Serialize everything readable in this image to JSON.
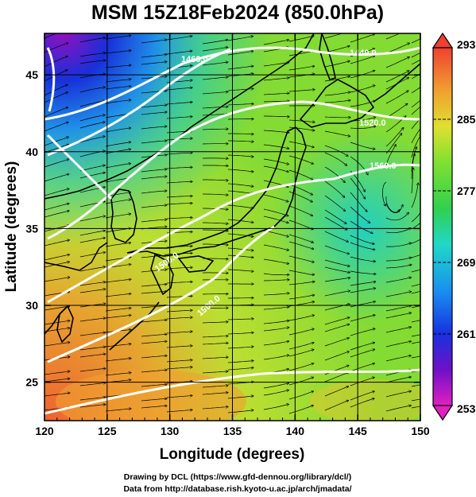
{
  "title": "MSM 15Z18Feb2024 (850.0hPa)",
  "xlabel": "Longitude (degrees)",
  "ylabel": "Latitude  (degrees)",
  "x_ticks": [
    "120",
    "125",
    "130",
    "135",
    "140",
    "145",
    "150"
  ],
  "y_ticks": [
    "25",
    "30",
    "35",
    "40",
    "45"
  ],
  "colorbar_ticks": [
    "293",
    "285",
    "277",
    "269",
    "261",
    "253"
  ],
  "contour_labels": [
    "1440.0",
    "1460.0",
    "1520.0",
    "1560.0",
    "1500.0",
    "1500.0"
  ],
  "credits": [
    "Drawing by DCL (https://www.gfd-dennou.org/library/dcl/)",
    "Data from http://database.rish.kyoto-u.ac.jp/arch/jmadata/"
  ],
  "colors": {
    "very_warm": "#f07830",
    "warm": "#f0b030",
    "mild": "#d8e030",
    "green": "#40d030",
    "cool": "#20d0c0",
    "cold": "#1880e0",
    "very_cold": "#7010c8",
    "contour": "#ffffff",
    "streamline": "#000000"
  },
  "map": {
    "lon_range": [
      120,
      150
    ],
    "lat_range": [
      22.5,
      47.7
    ],
    "grid_lon_step": 5,
    "grid_lat_step": 5,
    "colorbar_range": [
      253,
      293
    ],
    "colorbar_ends": "triangles",
    "field": "temperature (K) shaded, geopotential height contours, wind streamlines"
  }
}
